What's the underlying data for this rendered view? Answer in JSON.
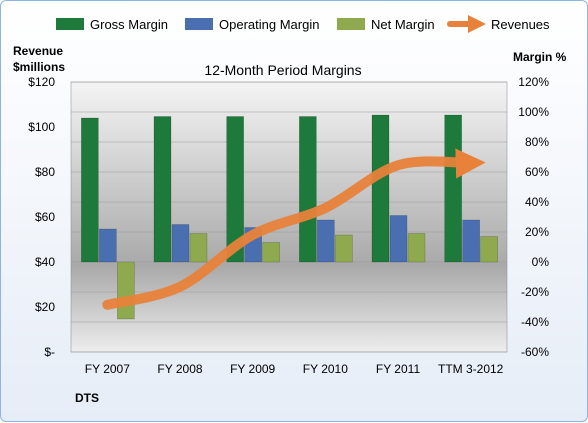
{
  "company": "DTS",
  "colors": {
    "gross": "#1e7a3a",
    "operating": "#4a6fb0",
    "net": "#8faa4e",
    "revenues": "#e8823a"
  },
  "chart_data": {
    "type": "bar",
    "title": "12-Month Period Margins",
    "ylabel_left": "Revenue $millions",
    "ylabel_right": "Margin %",
    "categories": [
      "FY 2007",
      "FY 2008",
      "FY 2009",
      "FY 2010",
      "FY 2011",
      "TTM 3-2012"
    ],
    "left_axis": {
      "min": 0,
      "max": 120,
      "step": 20,
      "ticks": [
        "$-",
        "$20",
        "$40",
        "$60",
        "$80",
        "$100",
        "$120"
      ]
    },
    "right_axis": {
      "min": -60,
      "max": 120,
      "step": 20,
      "ticks": [
        "-60%",
        "-40%",
        "-20%",
        "0%",
        "20%",
        "40%",
        "60%",
        "80%",
        "100%",
        "120%"
      ]
    },
    "series": [
      {
        "name": "Gross Margin",
        "axis": "right",
        "values": [
          96,
          97,
          97,
          97,
          98,
          98
        ]
      },
      {
        "name": "Operating Margin",
        "axis": "right",
        "values": [
          22,
          25,
          23,
          28,
          31,
          28
        ]
      },
      {
        "name": "Net Margin",
        "axis": "right",
        "values": [
          -38,
          19,
          13,
          18,
          19,
          17
        ]
      },
      {
        "name": "Revenues",
        "axis": "left",
        "type": "line",
        "values": [
          21,
          29,
          52,
          64,
          83,
          84
        ]
      }
    ],
    "grid": true,
    "legend": "top"
  }
}
